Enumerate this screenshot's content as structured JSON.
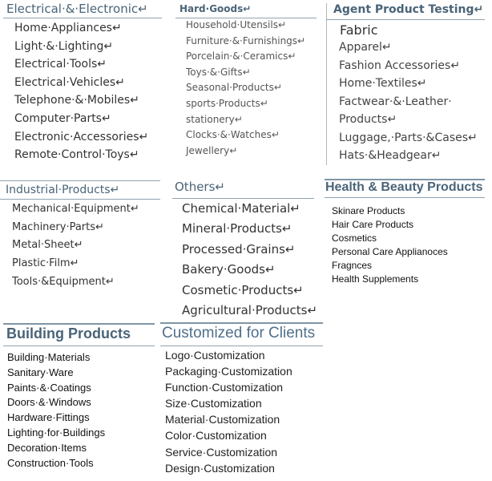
{
  "sections": {
    "electrical": {
      "title": "Electrical·&·Electronic↵",
      "items": [
        "Home·Appliances↵",
        "Light·&·Lighting↵",
        "Electrical·Tools↵",
        "Electrical·Vehicles↵",
        "Telephone·&·Mobiles↵",
        "Computer·Parts↵",
        "Electronic·Accessories↵",
        "Remote·Control·Toys↵"
      ]
    },
    "hard_goods": {
      "title": "Hard·Goods↵",
      "items": [
        "Household·Utensils↵",
        "Furniture·&·Furnishings↵",
        "Porcelain·&·Ceramics↵",
        "Toys·&·Gifts↵",
        "Seasonal·Products↵",
        "sports·Products↵",
        "stationery↵",
        "Clocks·&·Watches↵",
        "Jewellery↵"
      ]
    },
    "agent_testing": {
      "title": "Agent Product Testing↵",
      "first_item": "Fabric",
      "items": [
        "Apparel↵",
        "Fashion Accessories↵",
        "Home·Textiles↵",
        "Factwear·&·Leather·",
        "Products↵",
        "Luggage,·Parts·&Cases↵",
        "Hats·&Headgear↵"
      ]
    },
    "health_beauty": {
      "title": "Health & Beauty Products",
      "items": [
        "Skinare Products",
        "Hair Care Products",
        "Cosmetics",
        "Personal Care Applianoces",
        "Fragnces",
        "Health Supplements"
      ]
    },
    "industrial": {
      "title": "Industrial·Products↵",
      "items": [
        "Mechanical·Equipment↵",
        "Machinery·Parts↵",
        "Metal·Sheet↵",
        "Plastic·Film↵",
        "Tools·&Equipment↵"
      ]
    },
    "others": {
      "title": "Others↵",
      "items": [
        "Chemical·Material↵",
        "Mineral·Products↵",
        "Processed·Grains↵",
        "Bakery·Goods↵",
        "Cosmetic·Products↵",
        "Agricultural·Products↵"
      ]
    },
    "building": {
      "title": "Building Products",
      "items": [
        "Building·Materials",
        "Sanitary·Ware",
        "Paints·&·Coatings",
        "Doors·&·Windows",
        "Hardware·Fittings",
        "Lighting·for·Buildings",
        "Decoration·Items",
        "Construction·Tools"
      ]
    },
    "customized": {
      "title": "Customized for Clients",
      "items": [
        "Logo·Customization",
        "Packaging·Customization",
        "Function·Customization",
        "Size·Customization",
        "Material·Customization",
        "Color·Customization",
        "Service·Customization",
        "Design·Customization"
      ]
    }
  },
  "colors": {
    "heading": "#4a6478",
    "rule": "#8fa3b1"
  }
}
